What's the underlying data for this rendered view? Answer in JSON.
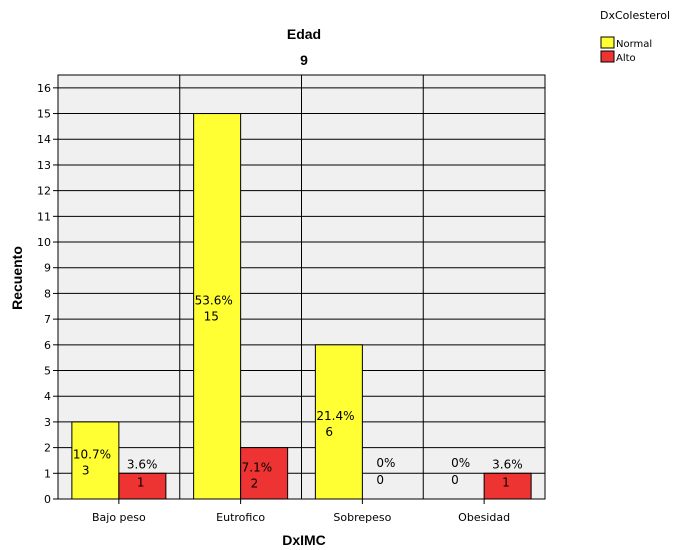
{
  "chart_data": {
    "type": "bar",
    "title": "Edad",
    "subtitle": "9",
    "xlabel": "DxIMC",
    "ylabel": "Recuento",
    "categories": [
      "Bajo peso",
      "Eutrofico",
      "Sobrepeso",
      "Obesidad"
    ],
    "ylim": [
      0,
      16.5
    ],
    "yticks": [
      "0",
      "1",
      "2",
      "3",
      "4",
      "5",
      "6",
      "7",
      "8",
      "9",
      "10",
      "11",
      "12",
      "13",
      "14",
      "15",
      "16"
    ],
    "grid": true,
    "legend": {
      "title": "DxColesterol",
      "position": "top-right"
    },
    "series": [
      {
        "name": "Normal",
        "color": "#ffff33",
        "values": [
          3,
          15,
          6,
          0
        ],
        "percent_labels": [
          "10.7%",
          "53.6%",
          "21.4%",
          "0%"
        ],
        "count_labels": [
          "3",
          "15",
          "6",
          "0"
        ]
      },
      {
        "name": "Alto",
        "color": "#ee3333",
        "values": [
          1,
          2,
          0,
          1
        ],
        "percent_labels": [
          "3.6%",
          "7.1%",
          "0%",
          "3.6%"
        ],
        "count_labels": [
          "1",
          "2",
          "0",
          "1"
        ]
      }
    ]
  }
}
